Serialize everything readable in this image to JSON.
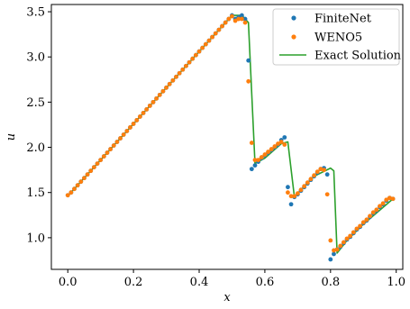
{
  "chart_data": {
    "type": "scatter",
    "title": "",
    "xlabel": "x",
    "ylabel": "u",
    "xlim": [
      -0.05,
      1.02
    ],
    "ylim": [
      0.65,
      3.58
    ],
    "x_ticks": [
      0.0,
      0.2,
      0.4,
      0.6,
      0.8,
      1.0
    ],
    "x_tick_labels": [
      "0.0",
      "0.2",
      "0.4",
      "0.6",
      "0.8",
      "1.0"
    ],
    "y_ticks": [
      1.0,
      1.5,
      2.0,
      2.5,
      3.0,
      3.5
    ],
    "y_tick_labels": [
      "1.0",
      "1.5",
      "2.0",
      "2.5",
      "3.0",
      "3.5"
    ],
    "grid": false,
    "legend_position": "top-right",
    "series": [
      {
        "name": "FiniteNet",
        "kind": "points",
        "color": "#1f77b4",
        "x": [
          0.0,
          0.01,
          0.02,
          0.03,
          0.04,
          0.05,
          0.06,
          0.07,
          0.08,
          0.09,
          0.1,
          0.11,
          0.12,
          0.13,
          0.14,
          0.15,
          0.16,
          0.17,
          0.18,
          0.19,
          0.2,
          0.21,
          0.22,
          0.23,
          0.24,
          0.25,
          0.26,
          0.27,
          0.28,
          0.29,
          0.3,
          0.31,
          0.32,
          0.33,
          0.34,
          0.35,
          0.36,
          0.37,
          0.38,
          0.39,
          0.4,
          0.41,
          0.42,
          0.43,
          0.44,
          0.45,
          0.46,
          0.47,
          0.48,
          0.49,
          0.5,
          0.51,
          0.52,
          0.53,
          0.54,
          0.55,
          0.56,
          0.57,
          0.58,
          0.59,
          0.6,
          0.61,
          0.62,
          0.63,
          0.64,
          0.65,
          0.66,
          0.67,
          0.68,
          0.69,
          0.7,
          0.71,
          0.72,
          0.73,
          0.74,
          0.75,
          0.76,
          0.77,
          0.78,
          0.79,
          0.8,
          0.81,
          0.82,
          0.83,
          0.84,
          0.85,
          0.86,
          0.87,
          0.88,
          0.89,
          0.9,
          0.91,
          0.92,
          0.93,
          0.94,
          0.95,
          0.96,
          0.97,
          0.98,
          0.99
        ],
        "y": [
          1.47,
          1.5,
          1.54,
          1.58,
          1.62,
          1.66,
          1.7,
          1.74,
          1.78,
          1.82,
          1.86,
          1.9,
          1.94,
          1.98,
          2.02,
          2.06,
          2.1,
          2.14,
          2.18,
          2.22,
          2.26,
          2.3,
          2.34,
          2.38,
          2.42,
          2.46,
          2.5,
          2.54,
          2.58,
          2.62,
          2.66,
          2.7,
          2.74,
          2.78,
          2.82,
          2.86,
          2.9,
          2.94,
          2.98,
          3.02,
          3.06,
          3.1,
          3.14,
          3.18,
          3.22,
          3.26,
          3.3,
          3.34,
          3.38,
          3.42,
          3.46,
          3.42,
          3.44,
          3.46,
          3.42,
          2.96,
          1.76,
          1.8,
          1.84,
          1.88,
          1.91,
          1.94,
          1.97,
          2.0,
          2.03,
          2.08,
          2.11,
          1.56,
          1.37,
          1.45,
          1.48,
          1.52,
          1.56,
          1.6,
          1.64,
          1.68,
          1.72,
          1.76,
          1.77,
          1.7,
          0.76,
          0.82,
          0.87,
          0.9,
          0.94,
          0.98,
          1.01,
          1.05,
          1.09,
          1.12,
          1.16,
          1.19,
          1.23,
          1.27,
          1.3,
          1.34,
          1.37,
          1.41,
          1.44,
          1.43
        ]
      },
      {
        "name": "WENO5",
        "kind": "points",
        "color": "#ff7f0e",
        "x": [
          0.0,
          0.01,
          0.02,
          0.03,
          0.04,
          0.05,
          0.06,
          0.07,
          0.08,
          0.09,
          0.1,
          0.11,
          0.12,
          0.13,
          0.14,
          0.15,
          0.16,
          0.17,
          0.18,
          0.19,
          0.2,
          0.21,
          0.22,
          0.23,
          0.24,
          0.25,
          0.26,
          0.27,
          0.28,
          0.29,
          0.3,
          0.31,
          0.32,
          0.33,
          0.34,
          0.35,
          0.36,
          0.37,
          0.38,
          0.39,
          0.4,
          0.41,
          0.42,
          0.43,
          0.44,
          0.45,
          0.46,
          0.47,
          0.48,
          0.49,
          0.5,
          0.51,
          0.52,
          0.53,
          0.54,
          0.55,
          0.56,
          0.57,
          0.58,
          0.59,
          0.6,
          0.61,
          0.62,
          0.63,
          0.64,
          0.65,
          0.66,
          0.67,
          0.68,
          0.69,
          0.7,
          0.71,
          0.72,
          0.73,
          0.74,
          0.75,
          0.76,
          0.77,
          0.78,
          0.79,
          0.8,
          0.81,
          0.82,
          0.83,
          0.84,
          0.85,
          0.86,
          0.87,
          0.88,
          0.89,
          0.9,
          0.91,
          0.92,
          0.93,
          0.94,
          0.95,
          0.96,
          0.97,
          0.98,
          0.99
        ],
        "y": [
          1.47,
          1.5,
          1.54,
          1.58,
          1.62,
          1.66,
          1.7,
          1.74,
          1.78,
          1.82,
          1.86,
          1.9,
          1.94,
          1.98,
          2.02,
          2.06,
          2.1,
          2.14,
          2.18,
          2.22,
          2.26,
          2.3,
          2.34,
          2.38,
          2.42,
          2.46,
          2.5,
          2.54,
          2.58,
          2.62,
          2.66,
          2.7,
          2.74,
          2.78,
          2.82,
          2.86,
          2.9,
          2.94,
          2.98,
          3.02,
          3.06,
          3.1,
          3.14,
          3.18,
          3.22,
          3.26,
          3.3,
          3.34,
          3.38,
          3.42,
          3.45,
          3.4,
          3.42,
          3.42,
          3.38,
          2.73,
          2.05,
          1.86,
          1.86,
          1.89,
          1.92,
          1.95,
          1.98,
          2.01,
          2.04,
          2.06,
          2.03,
          1.5,
          1.46,
          1.46,
          1.49,
          1.53,
          1.57,
          1.61,
          1.65,
          1.69,
          1.73,
          1.76,
          1.75,
          1.48,
          0.97,
          0.86,
          0.87,
          0.91,
          0.95,
          0.99,
          1.02,
          1.06,
          1.1,
          1.13,
          1.17,
          1.2,
          1.24,
          1.28,
          1.31,
          1.35,
          1.38,
          1.42,
          1.44,
          1.43
        ]
      },
      {
        "name": "Exact Solution",
        "kind": "line",
        "color": "#2ca02c",
        "x": [
          0.0,
          0.2,
          0.4,
          0.5,
          0.53,
          0.55,
          0.57,
          0.6,
          0.65,
          0.67,
          0.69,
          0.7,
          0.75,
          0.8,
          0.81,
          0.82,
          0.85,
          0.9,
          0.99
        ],
        "y": [
          1.46,
          2.26,
          3.06,
          3.46,
          3.46,
          3.38,
          1.82,
          1.88,
          2.04,
          2.06,
          1.45,
          1.49,
          1.68,
          1.77,
          1.74,
          0.83,
          0.97,
          1.15,
          1.43
        ]
      }
    ]
  }
}
